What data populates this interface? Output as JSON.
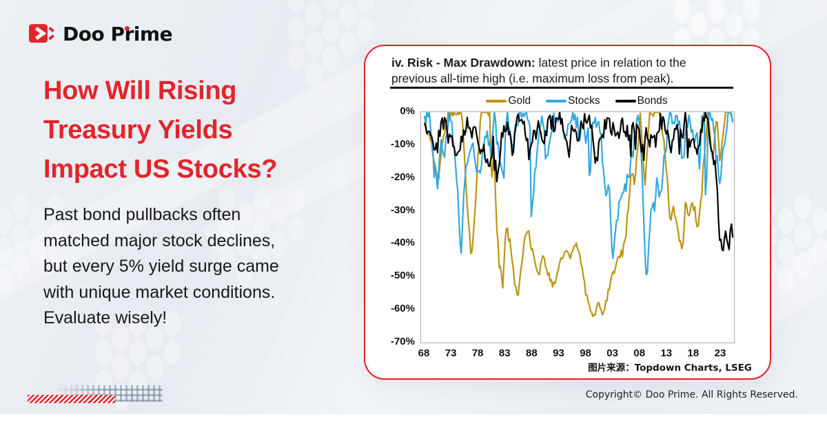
{
  "brand": {
    "logo_text": "Doo Prime",
    "red": "#e3242b"
  },
  "hero": {
    "title_lines": [
      "How Will Rising",
      "Treasury Yields",
      "Impact US Stocks?"
    ],
    "body_lines": [
      "Past bond pullbacks often",
      "matched major stock declines,",
      "but every 5% yield surge came",
      "with unique market conditions.",
      "Evaluate wisely!"
    ]
  },
  "footer": {
    "copyright": "Copyright© Doo Prime. All Rights Reserved."
  },
  "chart_data": {
    "type": "line",
    "title_bold": "iv. Risk - Max Drawdown:",
    "title_rest": " latest price in relation to the previous all-time high (i.e. maximum loss from peak).",
    "source_note": "图片来源：Topdown Charts, LSEG",
    "legend_position": "top",
    "grid": false,
    "ylim": [
      -70,
      0
    ],
    "x_years": [
      1968,
      2025.3
    ],
    "yticks": [
      "0%",
      "-10%",
      "-20%",
      "-30%",
      "-40%",
      "-50%",
      "-60%",
      "-70%"
    ],
    "xticks": [
      "68",
      "73",
      "78",
      "83",
      "88",
      "93",
      "98",
      "03",
      "08",
      "13",
      "18",
      "23"
    ],
    "series": [
      {
        "name": "Gold",
        "color": "#bc9313",
        "noise": 1.3,
        "spike_p": 0.05,
        "spike_amp": 3,
        "anchors": [
          [
            1968,
            -2
          ],
          [
            1968.6,
            -6
          ],
          [
            1969.3,
            -10
          ],
          [
            1970,
            -17
          ],
          [
            1970.6,
            -20
          ],
          [
            1971.2,
            -12
          ],
          [
            1971.9,
            -4
          ],
          [
            1972.5,
            0
          ],
          [
            1973.4,
            0
          ],
          [
            1974.9,
            0
          ],
          [
            1975.6,
            -18
          ],
          [
            1976.2,
            -34
          ],
          [
            1976.7,
            -46
          ],
          [
            1977.4,
            -28
          ],
          [
            1978,
            -12
          ],
          [
            1978.5,
            0
          ],
          [
            1979.6,
            0
          ],
          [
            1980.1,
            0
          ],
          [
            1980.4,
            -22
          ],
          [
            1980.9,
            -12
          ],
          [
            1981.4,
            -35
          ],
          [
            1981.9,
            -45
          ],
          [
            1982.5,
            -53
          ],
          [
            1983.1,
            -34
          ],
          [
            1983.9,
            -40
          ],
          [
            1984.6,
            -50
          ],
          [
            1985.2,
            -57
          ],
          [
            1985.9,
            -47
          ],
          [
            1986.6,
            -39
          ],
          [
            1987.3,
            -35
          ],
          [
            1987.9,
            -42
          ],
          [
            1988.6,
            -46
          ],
          [
            1989.3,
            -49
          ],
          [
            1989.9,
            -44
          ],
          [
            1990.6,
            -47
          ],
          [
            1991.4,
            -51
          ],
          [
            1992.2,
            -53
          ],
          [
            1993.1,
            -45
          ],
          [
            1994,
            -42
          ],
          [
            1995,
            -44
          ],
          [
            1996,
            -40
          ],
          [
            1996.9,
            -44
          ],
          [
            1997.6,
            -52
          ],
          [
            1998.4,
            -58
          ],
          [
            1999.6,
            -62
          ],
          [
            2000.3,
            -57
          ],
          [
            2001.2,
            -62
          ],
          [
            2002.1,
            -55
          ],
          [
            2003,
            -49
          ],
          [
            2004,
            -44
          ],
          [
            2005.1,
            -40
          ],
          [
            2005.9,
            -28
          ],
          [
            2006.4,
            -18
          ],
          [
            2007,
            -22
          ],
          [
            2007.6,
            -10
          ],
          [
            2008,
            0
          ],
          [
            2008.6,
            -14
          ],
          [
            2008.9,
            -22
          ],
          [
            2009.4,
            -10
          ],
          [
            2009.8,
            0
          ],
          [
            2010.6,
            0
          ],
          [
            2011.7,
            0
          ],
          [
            2012.4,
            -8
          ],
          [
            2013.3,
            -26
          ],
          [
            2013.6,
            -32
          ],
          [
            2014.2,
            -29
          ],
          [
            2015,
            -36
          ],
          [
            2015.9,
            -42
          ],
          [
            2016.5,
            -26
          ],
          [
            2016.95,
            -33
          ],
          [
            2017.6,
            -28
          ],
          [
            2018.2,
            -30
          ],
          [
            2018.7,
            -35
          ],
          [
            2019.3,
            -26
          ],
          [
            2019.7,
            -17
          ],
          [
            2020.6,
            0
          ],
          [
            2021.1,
            -9
          ],
          [
            2021.5,
            -14
          ],
          [
            2021.9,
            -7
          ],
          [
            2022.2,
            0
          ],
          [
            2022.8,
            -16
          ],
          [
            2023.3,
            -9
          ],
          [
            2023.9,
            0
          ],
          [
            2024.5,
            0
          ],
          [
            2025.3,
            -2
          ]
        ]
      },
      {
        "name": "Stocks",
        "color": "#31a8e0",
        "noise": 2.4,
        "spike_p": 0.1,
        "spike_amp": 5,
        "anchors": [
          [
            1968,
            -3
          ],
          [
            1968.9,
            0
          ],
          [
            1969.6,
            -13
          ],
          [
            1970.4,
            -25
          ],
          [
            1971.1,
            -8
          ],
          [
            1971.7,
            -12
          ],
          [
            1972.3,
            -4
          ],
          [
            1972.95,
            0
          ],
          [
            1973.6,
            -13
          ],
          [
            1974.2,
            -26
          ],
          [
            1974.75,
            -45
          ],
          [
            1975.4,
            -22
          ],
          [
            1976,
            -13
          ],
          [
            1976.8,
            -9
          ],
          [
            1977.6,
            -15
          ],
          [
            1978.2,
            -17
          ],
          [
            1979,
            -10
          ],
          [
            1979.8,
            -7
          ],
          [
            1980.25,
            -13
          ],
          [
            1980.9,
            0
          ],
          [
            1981.6,
            -11
          ],
          [
            1982.6,
            -21
          ],
          [
            1982.95,
            -8
          ],
          [
            1983.4,
            0
          ],
          [
            1984.4,
            -12
          ],
          [
            1985.1,
            -2
          ],
          [
            1985.9,
            0
          ],
          [
            1987.2,
            0
          ],
          [
            1987.65,
            -8
          ],
          [
            1987.85,
            -32
          ],
          [
            1988.4,
            -20
          ],
          [
            1989.4,
            -5
          ],
          [
            1989.75,
            0
          ],
          [
            1990.4,
            -6
          ],
          [
            1990.8,
            -18
          ],
          [
            1991.2,
            -5
          ],
          [
            1992.1,
            -2
          ],
          [
            1993.1,
            -2
          ],
          [
            1994.3,
            -8
          ],
          [
            1995.2,
            -1
          ],
          [
            1996.1,
            -3
          ],
          [
            1997.1,
            -3
          ],
          [
            1997.85,
            -9
          ],
          [
            1998.35,
            -2
          ],
          [
            1998.7,
            -19
          ],
          [
            1999.1,
            -3
          ],
          [
            1999.9,
            -4
          ],
          [
            2000.25,
            -1
          ],
          [
            2000.8,
            -9
          ],
          [
            2001.2,
            -19
          ],
          [
            2001.75,
            -28
          ],
          [
            2002.2,
            -20
          ],
          [
            2002.8,
            -45
          ],
          [
            2003.3,
            -38
          ],
          [
            2004.1,
            -29
          ],
          [
            2005,
            -25
          ],
          [
            2006,
            -19
          ],
          [
            2006.9,
            -10
          ],
          [
            2007.4,
            -4
          ],
          [
            2007.78,
            0
          ],
          [
            2008.3,
            -14
          ],
          [
            2008.85,
            -41
          ],
          [
            2009.18,
            -52
          ],
          [
            2009.8,
            -34
          ],
          [
            2010.3,
            -26
          ],
          [
            2010.55,
            -31
          ],
          [
            2011.1,
            -20
          ],
          [
            2011.75,
            -27
          ],
          [
            2012.3,
            -16
          ],
          [
            2012.9,
            -10
          ],
          [
            2013.25,
            0
          ],
          [
            2014.1,
            -2
          ],
          [
            2015.35,
            -2
          ],
          [
            2015.7,
            -12
          ],
          [
            2016.1,
            -13
          ],
          [
            2016.6,
            -3
          ],
          [
            2017.2,
            -1
          ],
          [
            2018.05,
            -10
          ],
          [
            2018.55,
            -3
          ],
          [
            2018.95,
            -19
          ],
          [
            2019.35,
            -3
          ],
          [
            2019.95,
            -1
          ],
          [
            2020.18,
            -33
          ],
          [
            2020.55,
            -7
          ],
          [
            2020.8,
            0
          ],
          [
            2021.6,
            -2
          ],
          [
            2022.05,
            -10
          ],
          [
            2022.45,
            -17
          ],
          [
            2022.78,
            -24
          ],
          [
            2023.2,
            -14
          ],
          [
            2023.65,
            -9
          ],
          [
            2024.1,
            -3
          ],
          [
            2024.6,
            0
          ],
          [
            2025.3,
            -3
          ]
        ]
      },
      {
        "name": "Bonds",
        "color": "#000000",
        "noise": 2.6,
        "spike_p": 0.15,
        "spike_amp": 5,
        "anchors": [
          [
            1968,
            -3
          ],
          [
            1969.1,
            -9
          ],
          [
            1970,
            -13
          ],
          [
            1970.8,
            -6
          ],
          [
            1971.5,
            -2
          ],
          [
            1972.2,
            -5
          ],
          [
            1973.1,
            -9
          ],
          [
            1974.3,
            -13
          ],
          [
            1975.1,
            -7
          ],
          [
            1976,
            -3
          ],
          [
            1977.1,
            -6
          ],
          [
            1978.1,
            -9
          ],
          [
            1979.4,
            -13
          ],
          [
            1980.2,
            -18
          ],
          [
            1980.7,
            -9
          ],
          [
            1981.4,
            -19
          ],
          [
            1981.9,
            -14
          ],
          [
            1982.6,
            -5
          ],
          [
            1983.2,
            -3
          ],
          [
            1984.3,
            -12
          ],
          [
            1985.1,
            -4
          ],
          [
            1986.1,
            -1
          ],
          [
            1987.4,
            -10
          ],
          [
            1988.1,
            -7
          ],
          [
            1989.1,
            -5
          ],
          [
            1990.1,
            -8
          ],
          [
            1991.1,
            -3
          ],
          [
            1992.1,
            -4
          ],
          [
            1993.1,
            -1
          ],
          [
            1994.7,
            -10
          ],
          [
            1995.6,
            -2
          ],
          [
            1996.5,
            -7
          ],
          [
            1997.2,
            -4
          ],
          [
            1998.4,
            -1
          ],
          [
            1999.8,
            -12
          ],
          [
            2000.6,
            -6
          ],
          [
            2001.1,
            -4
          ],
          [
            2002.1,
            -2
          ],
          [
            2003.4,
            -7
          ],
          [
            2004.1,
            -5
          ],
          [
            2005.1,
            -4
          ],
          [
            2006.1,
            -7
          ],
          [
            2007.1,
            -5
          ],
          [
            2008.2,
            -9
          ],
          [
            2008.6,
            -13
          ],
          [
            2009.1,
            -6
          ],
          [
            2009.7,
            -12
          ],
          [
            2010.2,
            -7
          ],
          [
            2011.1,
            -5
          ],
          [
            2012.2,
            -1
          ],
          [
            2013.6,
            -11
          ],
          [
            2014.6,
            -5
          ],
          [
            2015.6,
            -8
          ],
          [
            2016.4,
            -2
          ],
          [
            2016.95,
            -10
          ],
          [
            2017.6,
            -7
          ],
          [
            2018.8,
            -11
          ],
          [
            2019.6,
            -3
          ],
          [
            2020.25,
            0
          ],
          [
            2020.9,
            -5
          ],
          [
            2021.5,
            -10
          ],
          [
            2022.1,
            -19
          ],
          [
            2022.55,
            -31
          ],
          [
            2022.85,
            -38
          ],
          [
            2023.3,
            -44
          ],
          [
            2023.75,
            -38
          ],
          [
            2024.05,
            -36
          ],
          [
            2024.45,
            -42
          ],
          [
            2024.8,
            -34
          ],
          [
            2025.3,
            -35
          ]
        ]
      }
    ]
  }
}
